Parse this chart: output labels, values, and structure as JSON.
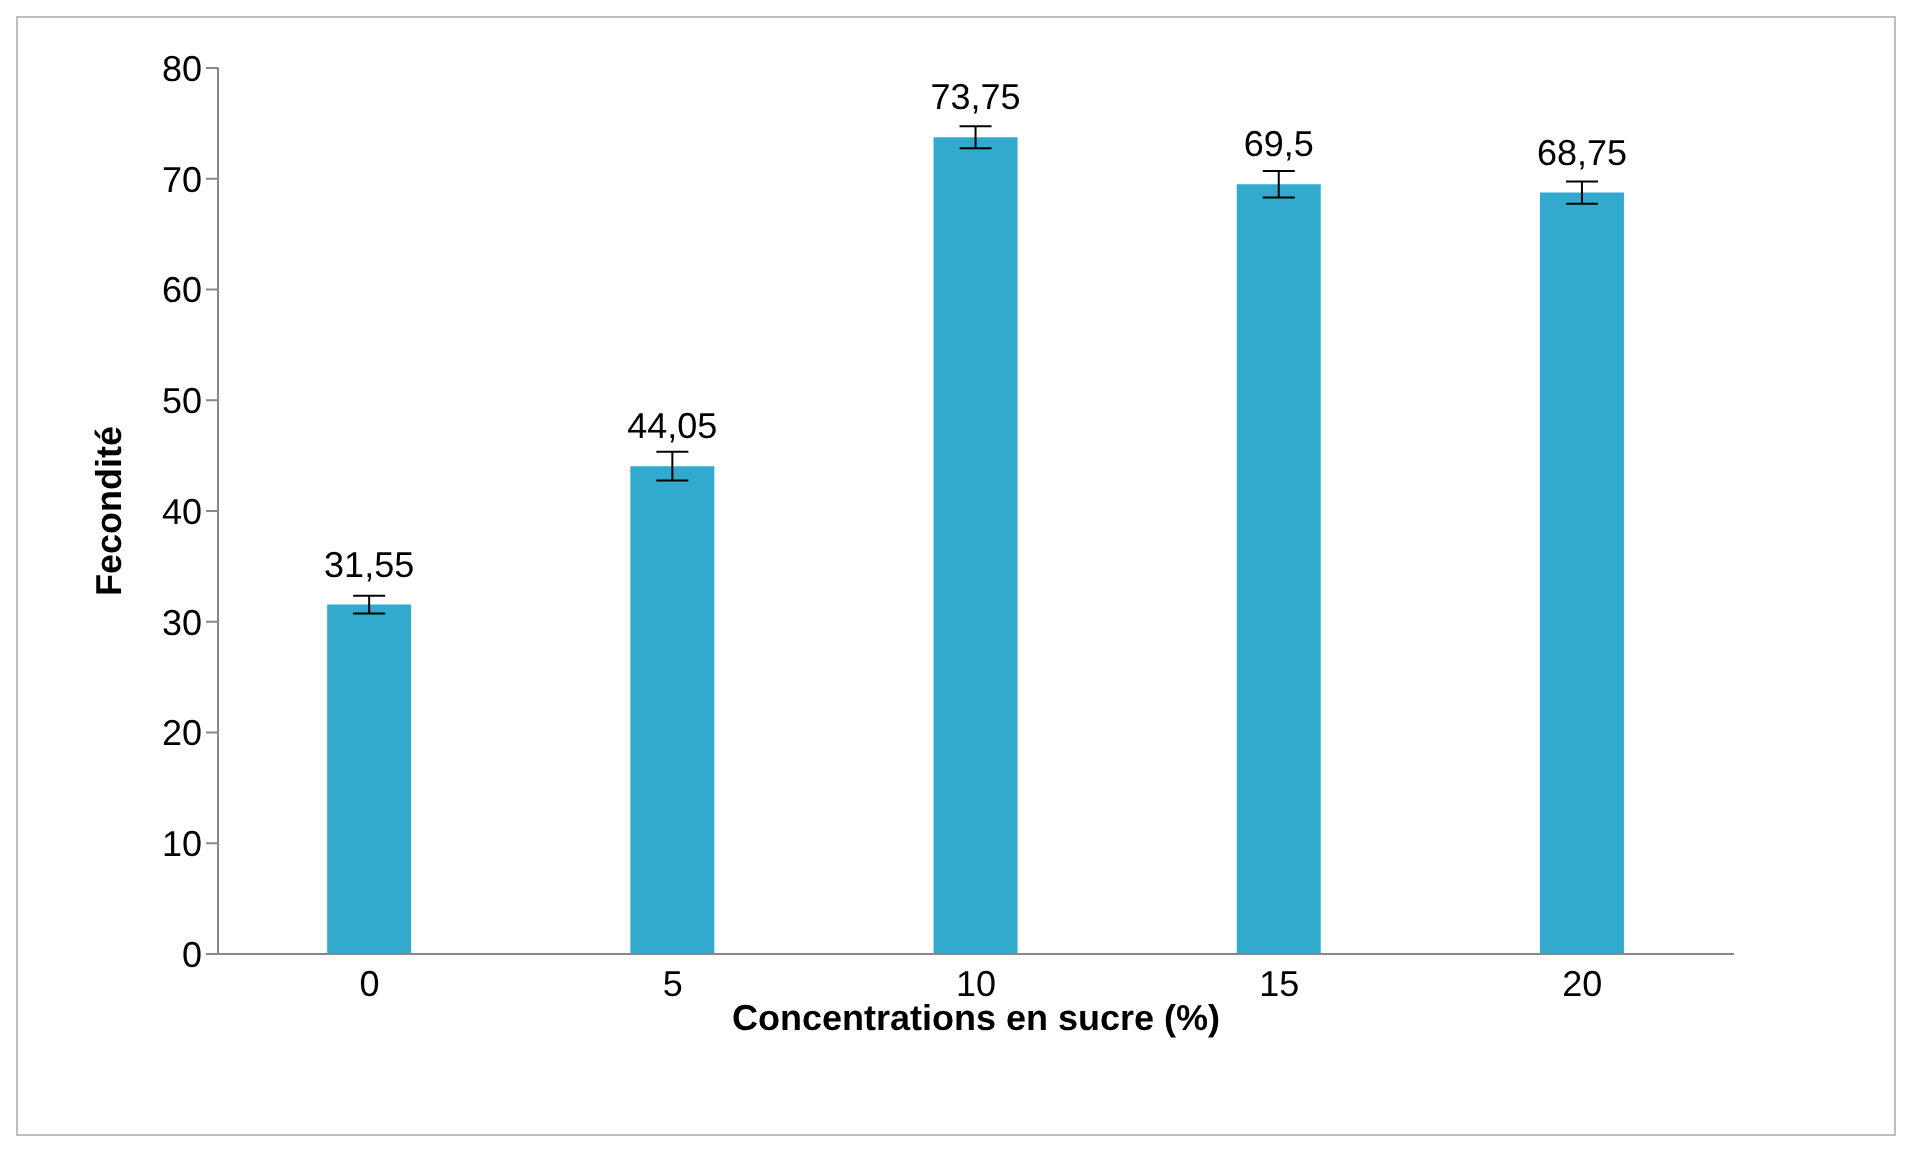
{
  "chart_data": {
    "type": "bar",
    "xlabel": "Concentrations en sucre  (%)",
    "ylabel": "Fecondité",
    "categories": [
      "0",
      "5",
      "10",
      "15",
      "20"
    ],
    "values": [
      31.55,
      44.05,
      73.75,
      69.5,
      68.75
    ],
    "errors": [
      0.8,
      1.3,
      1.0,
      1.2,
      1.0
    ],
    "value_labels": [
      "31,55",
      "44,05",
      "73,75",
      "69,5",
      "68,75"
    ],
    "color": "#31aacd",
    "ylim": [
      0,
      80
    ],
    "yticks": [
      0,
      10,
      20,
      30,
      40,
      50,
      60,
      70,
      80
    ]
  }
}
